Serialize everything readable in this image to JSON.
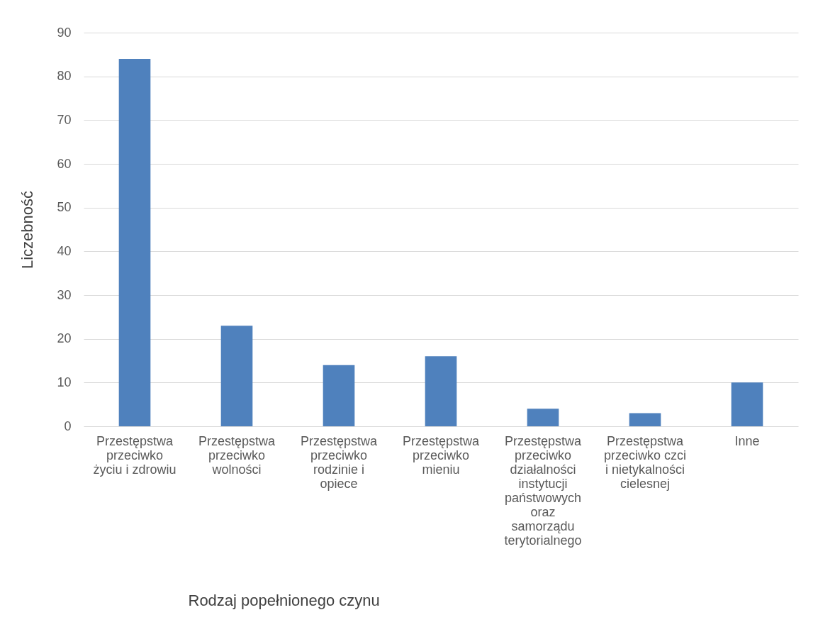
{
  "chart_data": {
    "type": "bar",
    "xlabel": "Rodzaj popełnionego czynu",
    "ylabel": "Liczebność",
    "categories": [
      "Przestępstwa przeciwko życiu i zdrowiu",
      "Przestępstwa przeciwko wolności",
      "Przestępstwa przeciwko rodzinie i opiece",
      "Przestępstwa przeciwko mieniu",
      "Przestępstwa przeciwko działalności instytucji państwowych oraz samorządu terytorialnego",
      "Przestępstwa przeciwko czci i nietykalności cielesnej",
      "Inne"
    ],
    "values": [
      84,
      23,
      14,
      16,
      4,
      3,
      10
    ],
    "color": "#4f81bd",
    "ylim": [
      0,
      90
    ],
    "yticks": [
      0,
      10,
      20,
      30,
      40,
      50,
      60,
      70,
      80,
      90
    ],
    "grid": "y"
  }
}
